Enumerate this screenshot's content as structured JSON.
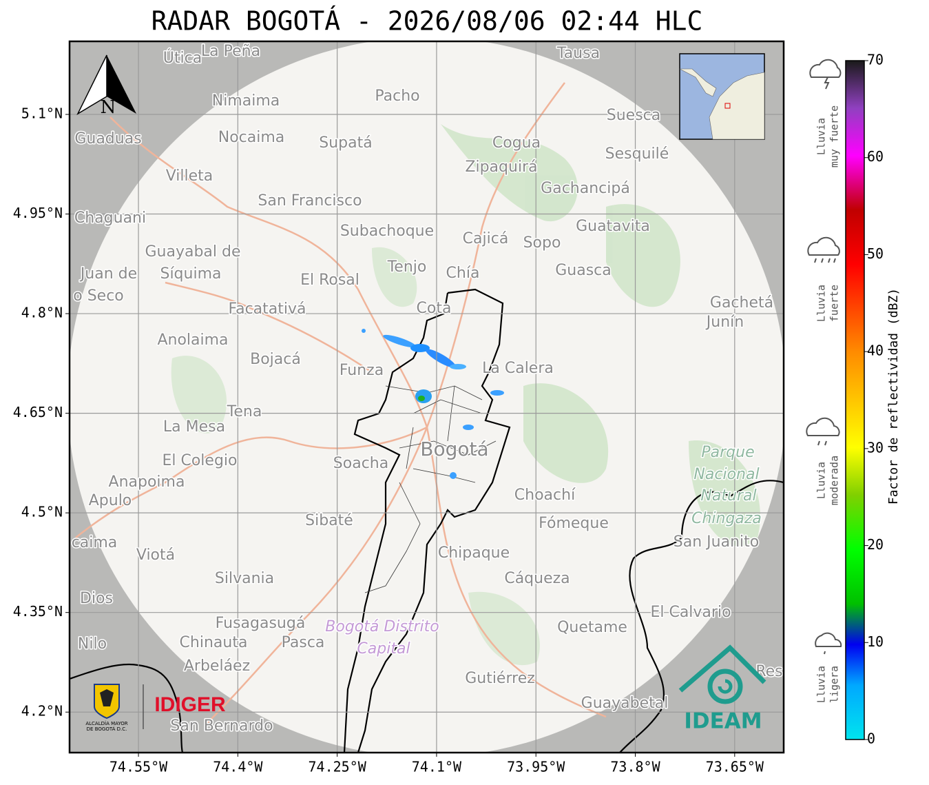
{
  "title": "RADAR BOGOTÁ - 2026/08/06 02:44 HLC",
  "map": {
    "xlim": [
      -74.654,
      -73.576
    ],
    "ylim": [
      4.139,
      5.21
    ],
    "xticks": [
      {
        "value": -74.55,
        "label": "74.55°W"
      },
      {
        "value": -74.4,
        "label": "74.4°W"
      },
      {
        "value": -74.25,
        "label": "74.25°W"
      },
      {
        "value": -74.1,
        "label": "74.1°W"
      },
      {
        "value": -73.95,
        "label": "73.95°W"
      },
      {
        "value": -73.8,
        "label": "73.8°W"
      },
      {
        "value": -73.65,
        "label": "73.65°W"
      }
    ],
    "yticks": [
      {
        "value": 5.1,
        "label": "5.1°N"
      },
      {
        "value": 4.95,
        "label": "4.95°N"
      },
      {
        "value": 4.8,
        "label": "4.8°N"
      },
      {
        "value": 4.65,
        "label": "4.65°N"
      },
      {
        "value": 4.5,
        "label": "4.5°N"
      },
      {
        "value": 4.35,
        "label": "4.35°N"
      },
      {
        "value": 4.2,
        "label": "4.2°N"
      }
    ],
    "north": "N",
    "places": [
      "Útica",
      "La Peña",
      "Tausa",
      "Pacho",
      "Nimaima",
      "Guaduas",
      "Nocaima",
      "Supatá",
      "Cogua",
      "Suesca",
      "Sesquilé",
      "Zipaquirá",
      "Villeta",
      "Gachancipá",
      "San Francisco",
      "Chaguani",
      "Guatavita",
      "Subachoque",
      "Cajicá",
      "Sopo",
      "Guayabal de",
      "Síquima",
      "Juan de",
      "o Seco",
      "Tenjo",
      "Chía",
      "Guasca",
      "El Rosal",
      "Cota",
      "Facatativá",
      "Gachetá",
      "Junín",
      "Anolaima",
      "Bojacá",
      "Funza",
      "La Calera",
      "Tena",
      "La Mesa",
      "Bogotá",
      "Parque",
      "Nacional",
      "Natural",
      "Chingaza",
      "Soacha",
      "El Colegio",
      "Anapoima",
      "Apulo",
      "Choachí",
      "Sibaté",
      "Fómeque",
      "San Juanito",
      "caima",
      "Viotá",
      "Chipaque",
      "Silvania",
      "Cáqueza",
      "Dios",
      "El Calvario",
      "Fusagasugá",
      "Bogotá Distrito",
      "Capital",
      "Quetame",
      "Nilo",
      "Chinauta",
      "Pasca",
      "Arbeláez",
      "Gutiérrez",
      "Res",
      "Guayabetal",
      "San Bernardo"
    ]
  },
  "logos": {
    "alcaldia": [
      "ALCALDÍA MAYOR",
      "DE BOGOTÁ D.C."
    ],
    "idiger": "IDIGER",
    "ideam": "IDEAM"
  },
  "colorbar": {
    "label": "Factor de reflectividad (dBZ)",
    "ylim": [
      0,
      70
    ],
    "ticks": [
      0,
      10,
      20,
      30,
      40,
      50,
      60,
      70
    ],
    "categories": [
      [
        "Lluvia",
        "muy fuerte"
      ],
      [
        "Lluvia",
        "fuerte"
      ],
      [
        "Lluvia",
        "moderada"
      ],
      [
        "Lluvia",
        "ligera"
      ]
    ]
  }
}
